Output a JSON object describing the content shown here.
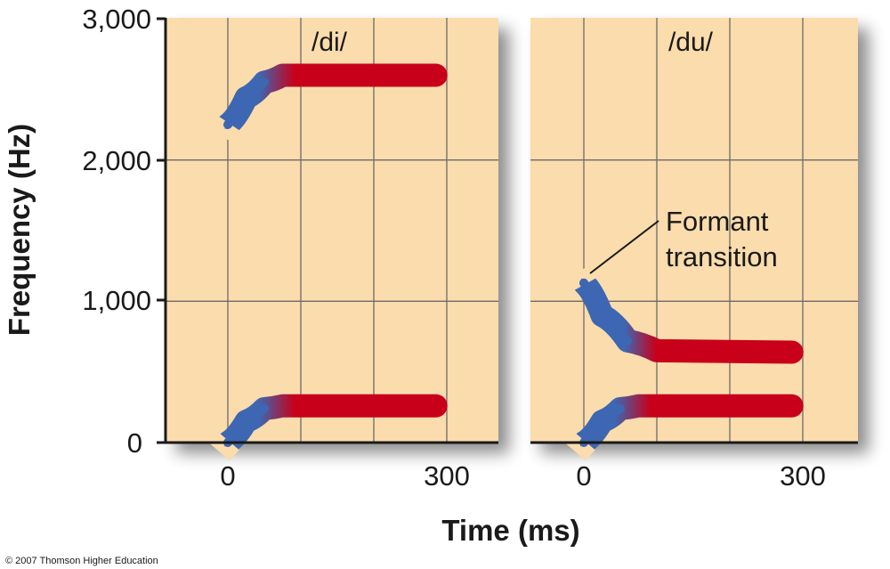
{
  "chart_data": {
    "type": "line",
    "xlabel": "Time (ms)",
    "ylabel": "Frequency (Hz)",
    "ylim": [
      0,
      3000
    ],
    "y_ticks": [
      "0",
      "1,000",
      "2,000",
      "3,000"
    ],
    "x_ticks": [
      "0",
      "300"
    ],
    "grid": true,
    "panels": [
      {
        "title": "/di/",
        "formants": [
          {
            "transition": [
              [
                0,
                2250
              ],
              [
                25,
                2440
              ],
              [
                50,
                2550
              ],
              [
                75,
                2600
              ]
            ],
            "steady": {
              "from": 75,
              "to": 285,
              "value": 2600
            }
          },
          {
            "transition": [
              [
                0,
                0
              ],
              [
                25,
                150
              ],
              [
                50,
                240
              ],
              [
                75,
                260
              ]
            ],
            "steady": {
              "from": 75,
              "to": 285,
              "value": 260
            }
          }
        ]
      },
      {
        "title": "/du/",
        "annotation": [
          "Formant",
          "transition"
        ],
        "formants": [
          {
            "transition": [
              [
                0,
                1130
              ],
              [
                25,
                900
              ],
              [
                60,
                720
              ],
              [
                100,
                650
              ]
            ],
            "steady": {
              "from": 100,
              "to": 285,
              "value": 640
            }
          },
          {
            "transition": [
              [
                0,
                0
              ],
              [
                25,
                150
              ],
              [
                50,
                240
              ],
              [
                75,
                260
              ]
            ],
            "steady": {
              "from": 75,
              "to": 285,
              "value": 260
            }
          }
        ]
      }
    ]
  },
  "copyright": "© 2007 Thomson Higher Education",
  "colors": {
    "background": "#fbdcac",
    "grid": "#6b6b6b",
    "transition": "#3d67b2",
    "steady": "#c8001a"
  }
}
